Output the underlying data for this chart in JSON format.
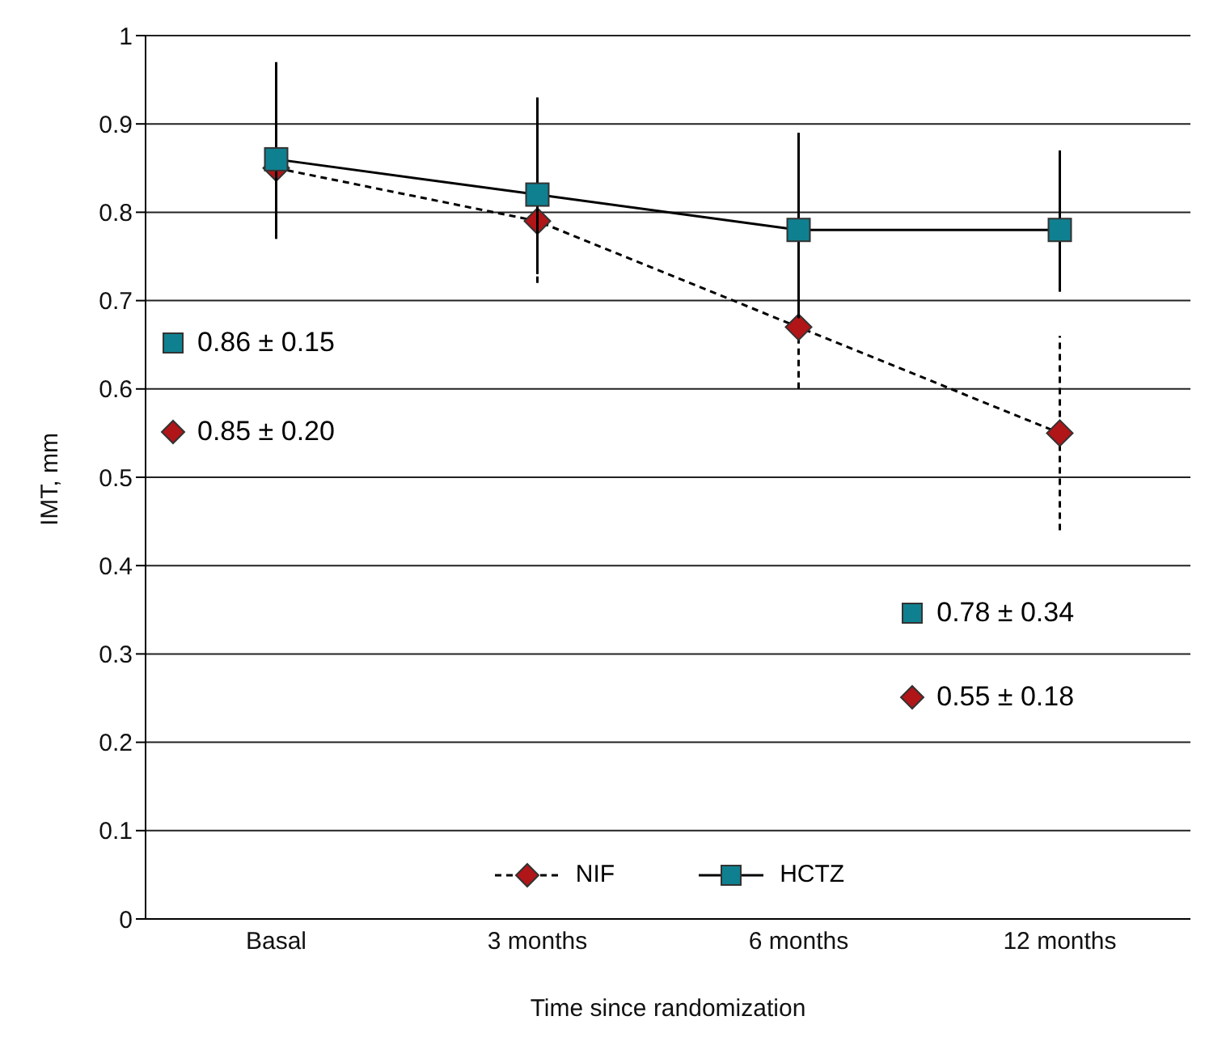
{
  "chart_data": {
    "type": "line",
    "xlabel": "Time since randomization",
    "ylabel": "IMT, mm",
    "categories": [
      "Basal",
      "3 months",
      "6 months",
      "12 months"
    ],
    "series": [
      {
        "name": "NIF",
        "color": "#b01518",
        "values": [
          0.85,
          0.79,
          0.67,
          0.55
        ],
        "errors": [
          [
            0.77,
            0.94
          ],
          [
            0.72,
            0.88
          ],
          [
            0.6,
            0.77
          ],
          [
            0.44,
            0.66
          ]
        ],
        "marker": "diamond",
        "line_style": "dashed"
      },
      {
        "name": "HCTZ",
        "color": "#0f8090",
        "values": [
          0.86,
          0.82,
          0.78,
          0.78
        ],
        "errors": [
          [
            0.77,
            0.97
          ],
          [
            0.73,
            0.93
          ],
          [
            0.68,
            0.89
          ],
          [
            0.71,
            0.87
          ]
        ],
        "marker": "square",
        "line_style": "solid"
      }
    ],
    "ylim": [
      0,
      1
    ],
    "yticks": [
      0,
      0.1,
      0.2,
      0.3,
      0.4,
      0.5,
      0.6,
      0.7,
      0.8,
      0.9,
      1
    ],
    "grid": "y",
    "legend": "bottom",
    "annotations": [
      "0.86 ± 0.15",
      "0.85 ± 0.20",
      "0.78 ± 0.34",
      "0.55 ± 0.18"
    ]
  }
}
